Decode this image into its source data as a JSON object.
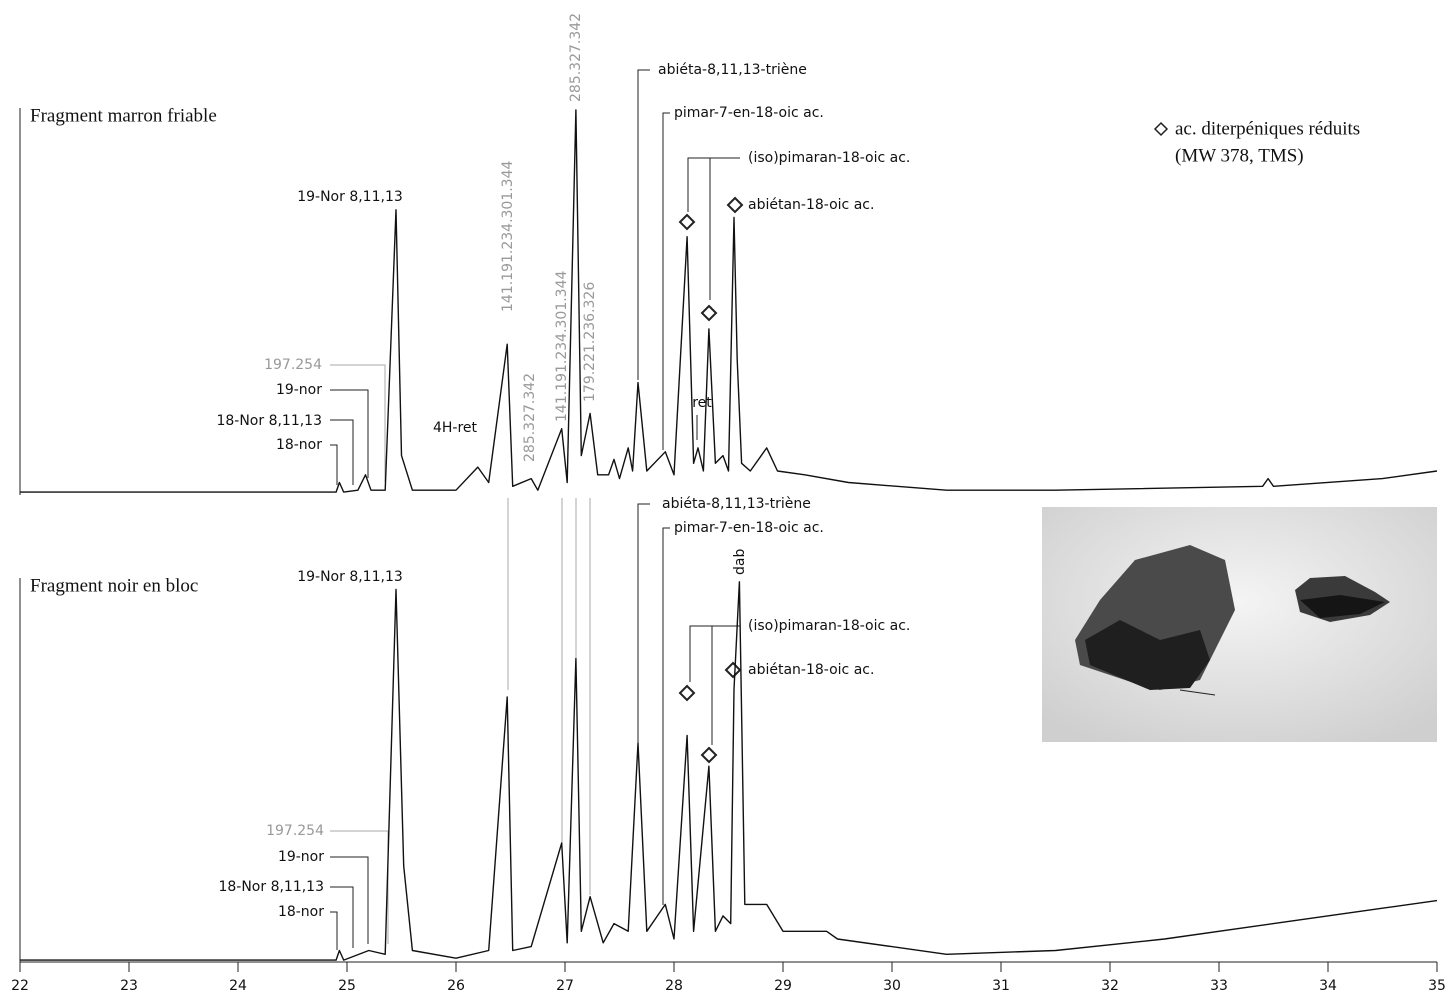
{
  "chart_data": [
    {
      "type": "line",
      "title": "Fragment marron friable",
      "legend": [
        "ac. diterpéniques réduits",
        "(MW 378, TMS)"
      ],
      "xlim": [
        22,
        35
      ],
      "ylim": [
        0,
        100
      ],
      "x": [
        22,
        24.9,
        24.93,
        24.97,
        25.1,
        25.17,
        25.22,
        25.35,
        25.45,
        25.5,
        25.6,
        26.0,
        26.2,
        26.3,
        26.47,
        26.52,
        26.69,
        26.75,
        26.97,
        27.02,
        27.1,
        27.15,
        27.23,
        27.3,
        27.4,
        27.45,
        27.5,
        27.58,
        27.62,
        27.67,
        27.75,
        27.92,
        28.0,
        28.12,
        28.18,
        28.22,
        28.27,
        28.32,
        28.38,
        28.45,
        28.5,
        28.55,
        28.58,
        28.62,
        28.7,
        28.85,
        28.95,
        29.2,
        29.6,
        30.5,
        31.5,
        33.4,
        33.45,
        33.5,
        34.5,
        35
      ],
      "values": [
        0.5,
        0.5,
        3,
        0.5,
        1,
        5,
        1,
        1,
        74,
        10,
        1,
        1,
        7,
        3,
        39,
        2,
        4,
        1,
        17,
        3,
        100,
        10,
        21,
        5,
        5,
        9,
        4,
        12,
        6,
        29,
        6,
        11,
        5,
        67,
        8,
        12,
        6,
        43,
        8,
        10,
        6,
        72,
        35,
        8,
        6,
        12,
        6,
        5,
        3,
        1,
        1,
        2,
        4,
        2,
        4,
        6
      ],
      "annotations": [
        "19-Nor 8,11,13",
        "197.254",
        "19-nor",
        "18-Nor 8,11,13",
        "18-nor",
        "4H-ret",
        "141.191.234.301.344",
        "285.327.342",
        "285.327.342",
        "141.191.234.301.344",
        "179.221.236.326",
        "abiéta-8,11,13-triène",
        "pimar-7-en-18-oic ac.",
        "(iso)pimaran-18-oic ac.",
        "abiétan-18-oic ac.",
        "ret"
      ]
    },
    {
      "type": "line",
      "title": "Fragment noir en bloc",
      "xlim": [
        22,
        35
      ],
      "ylim": [
        0,
        100
      ],
      "xticks": [
        22,
        23,
        24,
        25,
        26,
        27,
        28,
        29,
        30,
        31,
        32,
        33,
        34,
        35
      ],
      "x": [
        22,
        24.9,
        24.93,
        24.97,
        25.2,
        25.35,
        25.45,
        25.52,
        25.6,
        26.0,
        26.3,
        26.47,
        26.52,
        26.69,
        26.97,
        27.02,
        27.1,
        27.15,
        27.23,
        27.35,
        27.45,
        27.58,
        27.67,
        27.75,
        27.92,
        28.0,
        28.12,
        28.18,
        28.32,
        28.38,
        28.45,
        28.52,
        28.55,
        28.6,
        28.65,
        28.85,
        29.0,
        29.4,
        29.5,
        30.5,
        31.5,
        32.5,
        33.5,
        34.5,
        35
      ],
      "values": [
        0.5,
        0.5,
        3,
        0.5,
        3,
        2,
        97,
        25,
        3,
        1,
        3,
        69,
        3,
        4,
        31,
        5,
        79,
        8,
        17,
        5,
        10,
        8,
        57,
        8,
        15,
        6,
        59,
        8,
        51,
        8,
        12,
        10,
        71,
        99,
        15,
        15,
        8,
        8,
        6,
        2,
        3,
        6,
        10,
        14,
        16
      ],
      "annotations": [
        "abiéta-8,11,13-triène",
        "pimar-7-en-18-oic ac.",
        "19-Nor 8,11,13",
        "dab",
        "(iso)pimaran-18-oic ac.",
        "abiétan-18-oic ac.",
        "197.254",
        "19-nor",
        "18-Nor 8,11,13",
        "18-nor"
      ]
    }
  ]
}
